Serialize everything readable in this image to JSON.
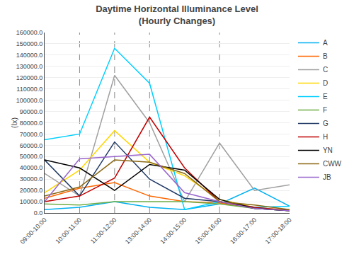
{
  "chart_data": {
    "type": "line",
    "title": "Daytime Horizontal Illuminance Level\n(Hourly Changes)",
    "ylabel": "(lx)",
    "categories": [
      "09:00-10:00",
      "10:00-11:00",
      "11:00-12:00",
      "13:00-14:00",
      "14:00-15:00",
      "15:00-16:00",
      "16:00-17:00",
      "17:00-18:00"
    ],
    "series": [
      {
        "name": "A",
        "color": "#00B0F0",
        "values": [
          3000,
          5000,
          10000,
          5000,
          3000,
          8000,
          22000,
          6000
        ]
      },
      {
        "name": "B",
        "color": "#FF6600",
        "values": [
          13000,
          22000,
          27000,
          15000,
          10000,
          9000,
          4000,
          3000
        ]
      },
      {
        "name": "C",
        "color": "#A0A0A0",
        "values": [
          35000,
          15000,
          122000,
          80000,
          10000,
          62000,
          20000,
          25000
        ]
      },
      {
        "name": "D",
        "color": "#FFD700",
        "values": [
          18000,
          38000,
          73000,
          45000,
          33000,
          12000,
          5000,
          2000
        ]
      },
      {
        "name": "E",
        "color": "#00CFFF",
        "values": [
          65000,
          70000,
          146000,
          115000,
          3000,
          10000,
          5000,
          6000
        ]
      },
      {
        "name": "F",
        "color": "#70AD47",
        "values": [
          8000,
          7000,
          10000,
          10000,
          10000,
          8000,
          4000,
          2000
        ]
      },
      {
        "name": "G",
        "color": "#1F3864",
        "values": [
          47000,
          15000,
          63000,
          30000,
          13000,
          10000,
          4000,
          2000
        ]
      },
      {
        "name": "H",
        "color": "#C00000",
        "values": [
          10000,
          15000,
          31000,
          85000,
          40000,
          10000,
          5000,
          2000
        ]
      },
      {
        "name": "YN",
        "color": "#000000",
        "values": [
          47000,
          40000,
          20000,
          43000,
          38000,
          12000,
          4000,
          2000
        ]
      },
      {
        "name": "CWW",
        "color": "#8B6914",
        "values": [
          15000,
          23000,
          47000,
          45000,
          35000,
          10000,
          7000,
          3000
        ]
      },
      {
        "name": "JB",
        "color": "#9966CC",
        "values": [
          10000,
          48000,
          50000,
          52000,
          18000,
          10000,
          4000,
          2000
        ]
      }
    ],
    "vlines": [
      "10:00-11:00",
      "11:00-12:00",
      "13:00-14:00",
      "15:00-16:00"
    ],
    "ylim": [
      0,
      160000
    ],
    "yticks": [
      {
        "value": 0,
        "label": "0.0"
      },
      {
        "value": 10000,
        "label": "10000.0"
      },
      {
        "value": 20000,
        "label": "20000.0"
      },
      {
        "value": 30000,
        "label": "30000.0"
      },
      {
        "value": 40000,
        "label": "40000.0"
      },
      {
        "value": 50000,
        "label": "50000.0"
      },
      {
        "value": 60000,
        "label": "60000.0"
      },
      {
        "value": 70000,
        "label": "70000.0"
      },
      {
        "value": 80000,
        "label": "80000.0"
      },
      {
        "value": 90000,
        "label": "90000.0"
      },
      {
        "value": 100000,
        "label": "100000.0"
      },
      {
        "value": 110000,
        "label": "110000.0"
      },
      {
        "value": 120000,
        "label": "120000.0"
      },
      {
        "value": 130000,
        "label": "130000.0"
      },
      {
        "value": 140000,
        "label": "140000.0"
      },
      {
        "value": 150000,
        "label": "150000.0"
      },
      {
        "value": 160000,
        "label": "160000.0"
      }
    ],
    "grid": true,
    "legend": "right"
  }
}
